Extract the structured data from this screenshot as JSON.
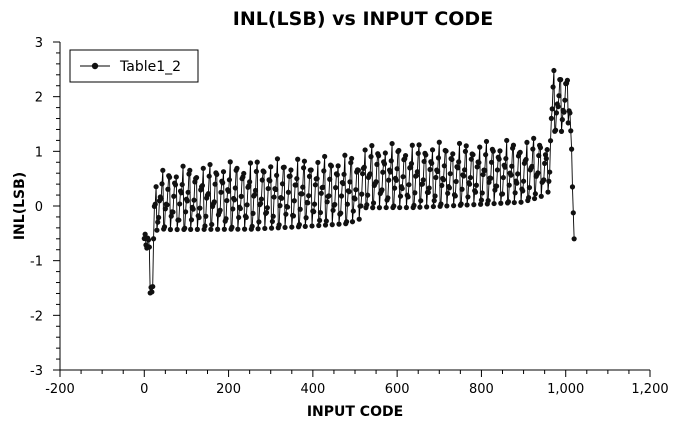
{
  "chart_data": {
    "type": "line",
    "title": "INL(LSB) vs INPUT CODE",
    "xlabel": "INPUT CODE",
    "ylabel": "INL(LSB)",
    "xlim": [
      -200,
      1200
    ],
    "ylim": [
      -3,
      3
    ],
    "grid": false,
    "legend": {
      "position": "top-left",
      "entries": [
        "Table1_2"
      ]
    },
    "x_ticks": [
      -200,
      0,
      200,
      400,
      600,
      800,
      1000,
      1200
    ],
    "x_tick_labels": [
      "-200",
      "0",
      "200",
      "400",
      "600",
      "800",
      "1,000",
      "1,200"
    ],
    "y_ticks": [
      -3,
      -2,
      -1,
      0,
      1,
      2,
      3
    ],
    "y_tick_labels": [
      "-3",
      "-2",
      "-1",
      "0",
      "1",
      "2",
      "3"
    ],
    "colors": {
      "series": "#000000",
      "marker": "#111111"
    },
    "series": [
      {
        "name": "Table1_2",
        "marker": "circle",
        "pattern": "sawtooth, period 16 codes; low and high envelopes in INL(LSB)",
        "envelope_low_x": [
          0,
          8,
          16,
          20,
          24,
          32,
          48,
          64,
          128,
          256,
          384,
          480,
          500,
          512,
          520,
          528,
          640,
          768,
          896,
          940,
          958,
          962,
          970,
          990,
          1010,
          1016,
          1020
        ],
        "envelope_low_y": [
          -0.7,
          -1.2,
          -1.8,
          -2.0,
          -0.8,
          -0.4,
          -0.5,
          -0.5,
          -0.5,
          -0.5,
          -0.45,
          -0.4,
          -0.35,
          -0.3,
          -0.1,
          -0.1,
          -0.1,
          -0.05,
          0.0,
          0.1,
          0.2,
          0.3,
          1.3,
          1.3,
          1.5,
          0.35,
          -0.6
        ],
        "envelope_high_x": [
          0,
          8,
          16,
          20,
          24,
          32,
          48,
          64,
          128,
          256,
          384,
          480,
          500,
          512,
          520,
          528,
          640,
          768,
          896,
          940,
          958,
          962,
          970,
          990,
          1010,
          1016,
          1020
        ],
        "envelope_high_y": [
          0.0,
          -0.3,
          -0.5,
          -0.3,
          0.5,
          0.7,
          0.85,
          0.9,
          0.95,
          1.05,
          1.1,
          1.15,
          1.2,
          1.0,
          1.25,
          1.3,
          1.35,
          1.35,
          1.4,
          1.45,
          1.3,
          2.0,
          2.65,
          2.6,
          2.7,
          0.35,
          -0.6
        ]
      }
    ]
  }
}
